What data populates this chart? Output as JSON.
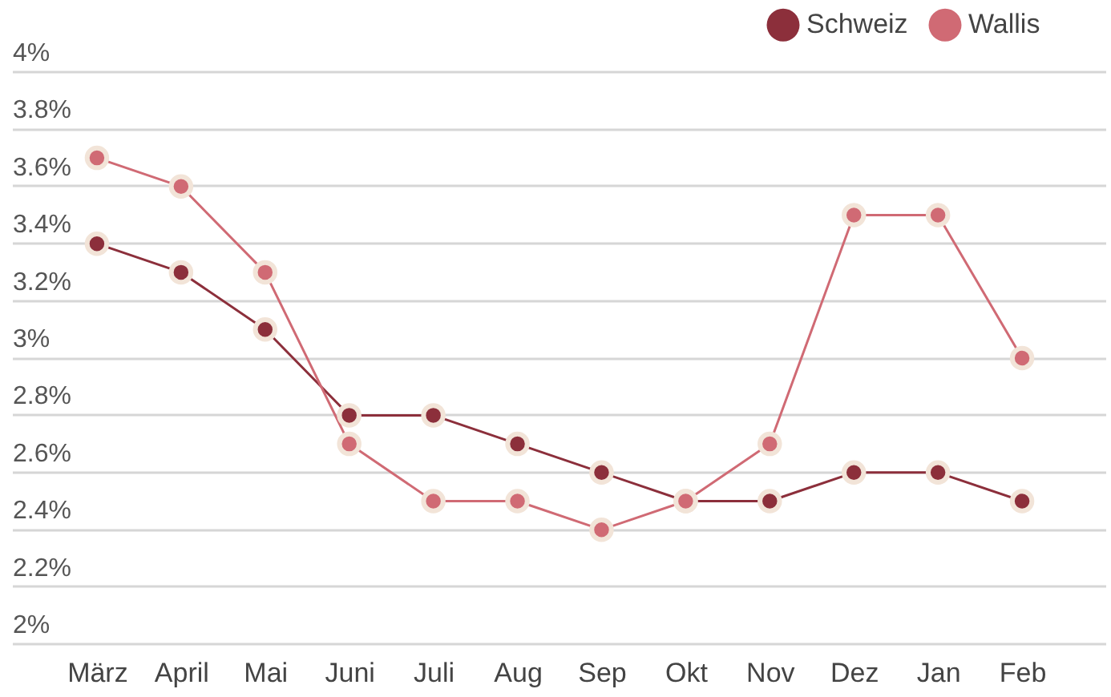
{
  "chart_data": {
    "type": "line",
    "categories": [
      "März",
      "April",
      "Mai",
      "Juni",
      "Juli",
      "Aug",
      "Sep",
      "Okt",
      "Nov",
      "Dez",
      "Jan",
      "Feb"
    ],
    "series": [
      {
        "name": "Schweiz",
        "color": "#8c2f3b",
        "values": [
          3.4,
          3.3,
          3.1,
          2.8,
          2.8,
          2.7,
          2.6,
          2.5,
          2.5,
          2.6,
          2.6,
          2.5
        ]
      },
      {
        "name": "Wallis",
        "color": "#d06a74",
        "values": [
          3.7,
          3.6,
          3.3,
          2.7,
          2.5,
          2.5,
          2.4,
          2.5,
          2.7,
          3.5,
          3.5,
          3.0
        ]
      }
    ],
    "ylim": [
      2,
      4
    ],
    "yticks": [
      {
        "value": 2,
        "label": "2%"
      },
      {
        "value": 2.2,
        "label": "2.2%"
      },
      {
        "value": 2.4,
        "label": "2.4%"
      },
      {
        "value": 2.6,
        "label": "2.6%"
      },
      {
        "value": 2.8,
        "label": "2.8%"
      },
      {
        "value": 3,
        "label": "3%"
      },
      {
        "value": 3.2,
        "label": "3.2%"
      },
      {
        "value": 3.4,
        "label": "3.4%"
      },
      {
        "value": 3.6,
        "label": "3.6%"
      },
      {
        "value": 3.8,
        "label": "3.8%"
      },
      {
        "value": 4,
        "label": "4%"
      }
    ],
    "grid": "y",
    "legend": "top right",
    "marker": "circle",
    "line_style": "solid"
  }
}
